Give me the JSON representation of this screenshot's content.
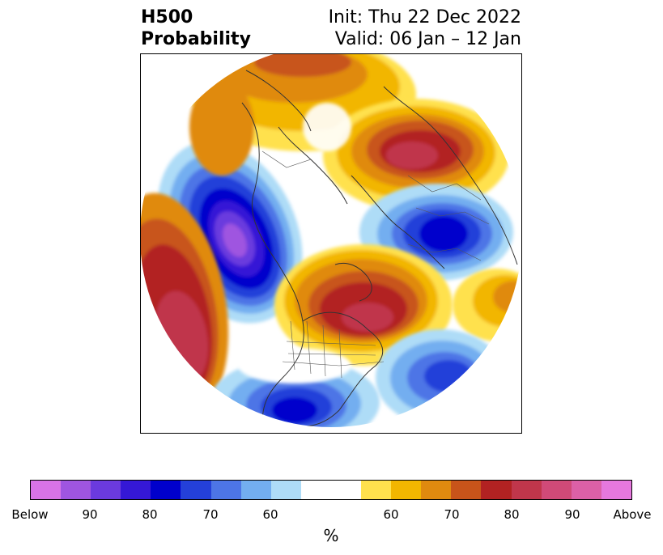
{
  "title": {
    "line1_left": "H500",
    "line2_left": "Probability",
    "line1_right": "Init: Thu 22 Dec 2022",
    "line2_right": "Valid: 06 Jan – 12 Jan"
  },
  "colorbar": {
    "unit": "%",
    "segments": [
      "#d873e6",
      "#9f55e0",
      "#6b3ade",
      "#3518d6",
      "#0000cc",
      "#2440d9",
      "#4d75e6",
      "#73aef0",
      "#aedcf7",
      "#ffffff",
      "#ffe14d",
      "#f2b600",
      "#e08a0f",
      "#c8541a",
      "#b22222",
      "#c0364b",
      "#d04a78",
      "#dc60a7",
      "#e678de"
    ],
    "ticks": [
      "Below",
      "90",
      "80",
      "70",
      "60",
      "60",
      "70",
      "80",
      "90",
      "Above"
    ]
  },
  "map": {
    "projection": "polar stereographic",
    "features": [
      "500 hPa anomaly probability shading",
      "coastlines",
      "country borders",
      "state borders"
    ]
  }
}
